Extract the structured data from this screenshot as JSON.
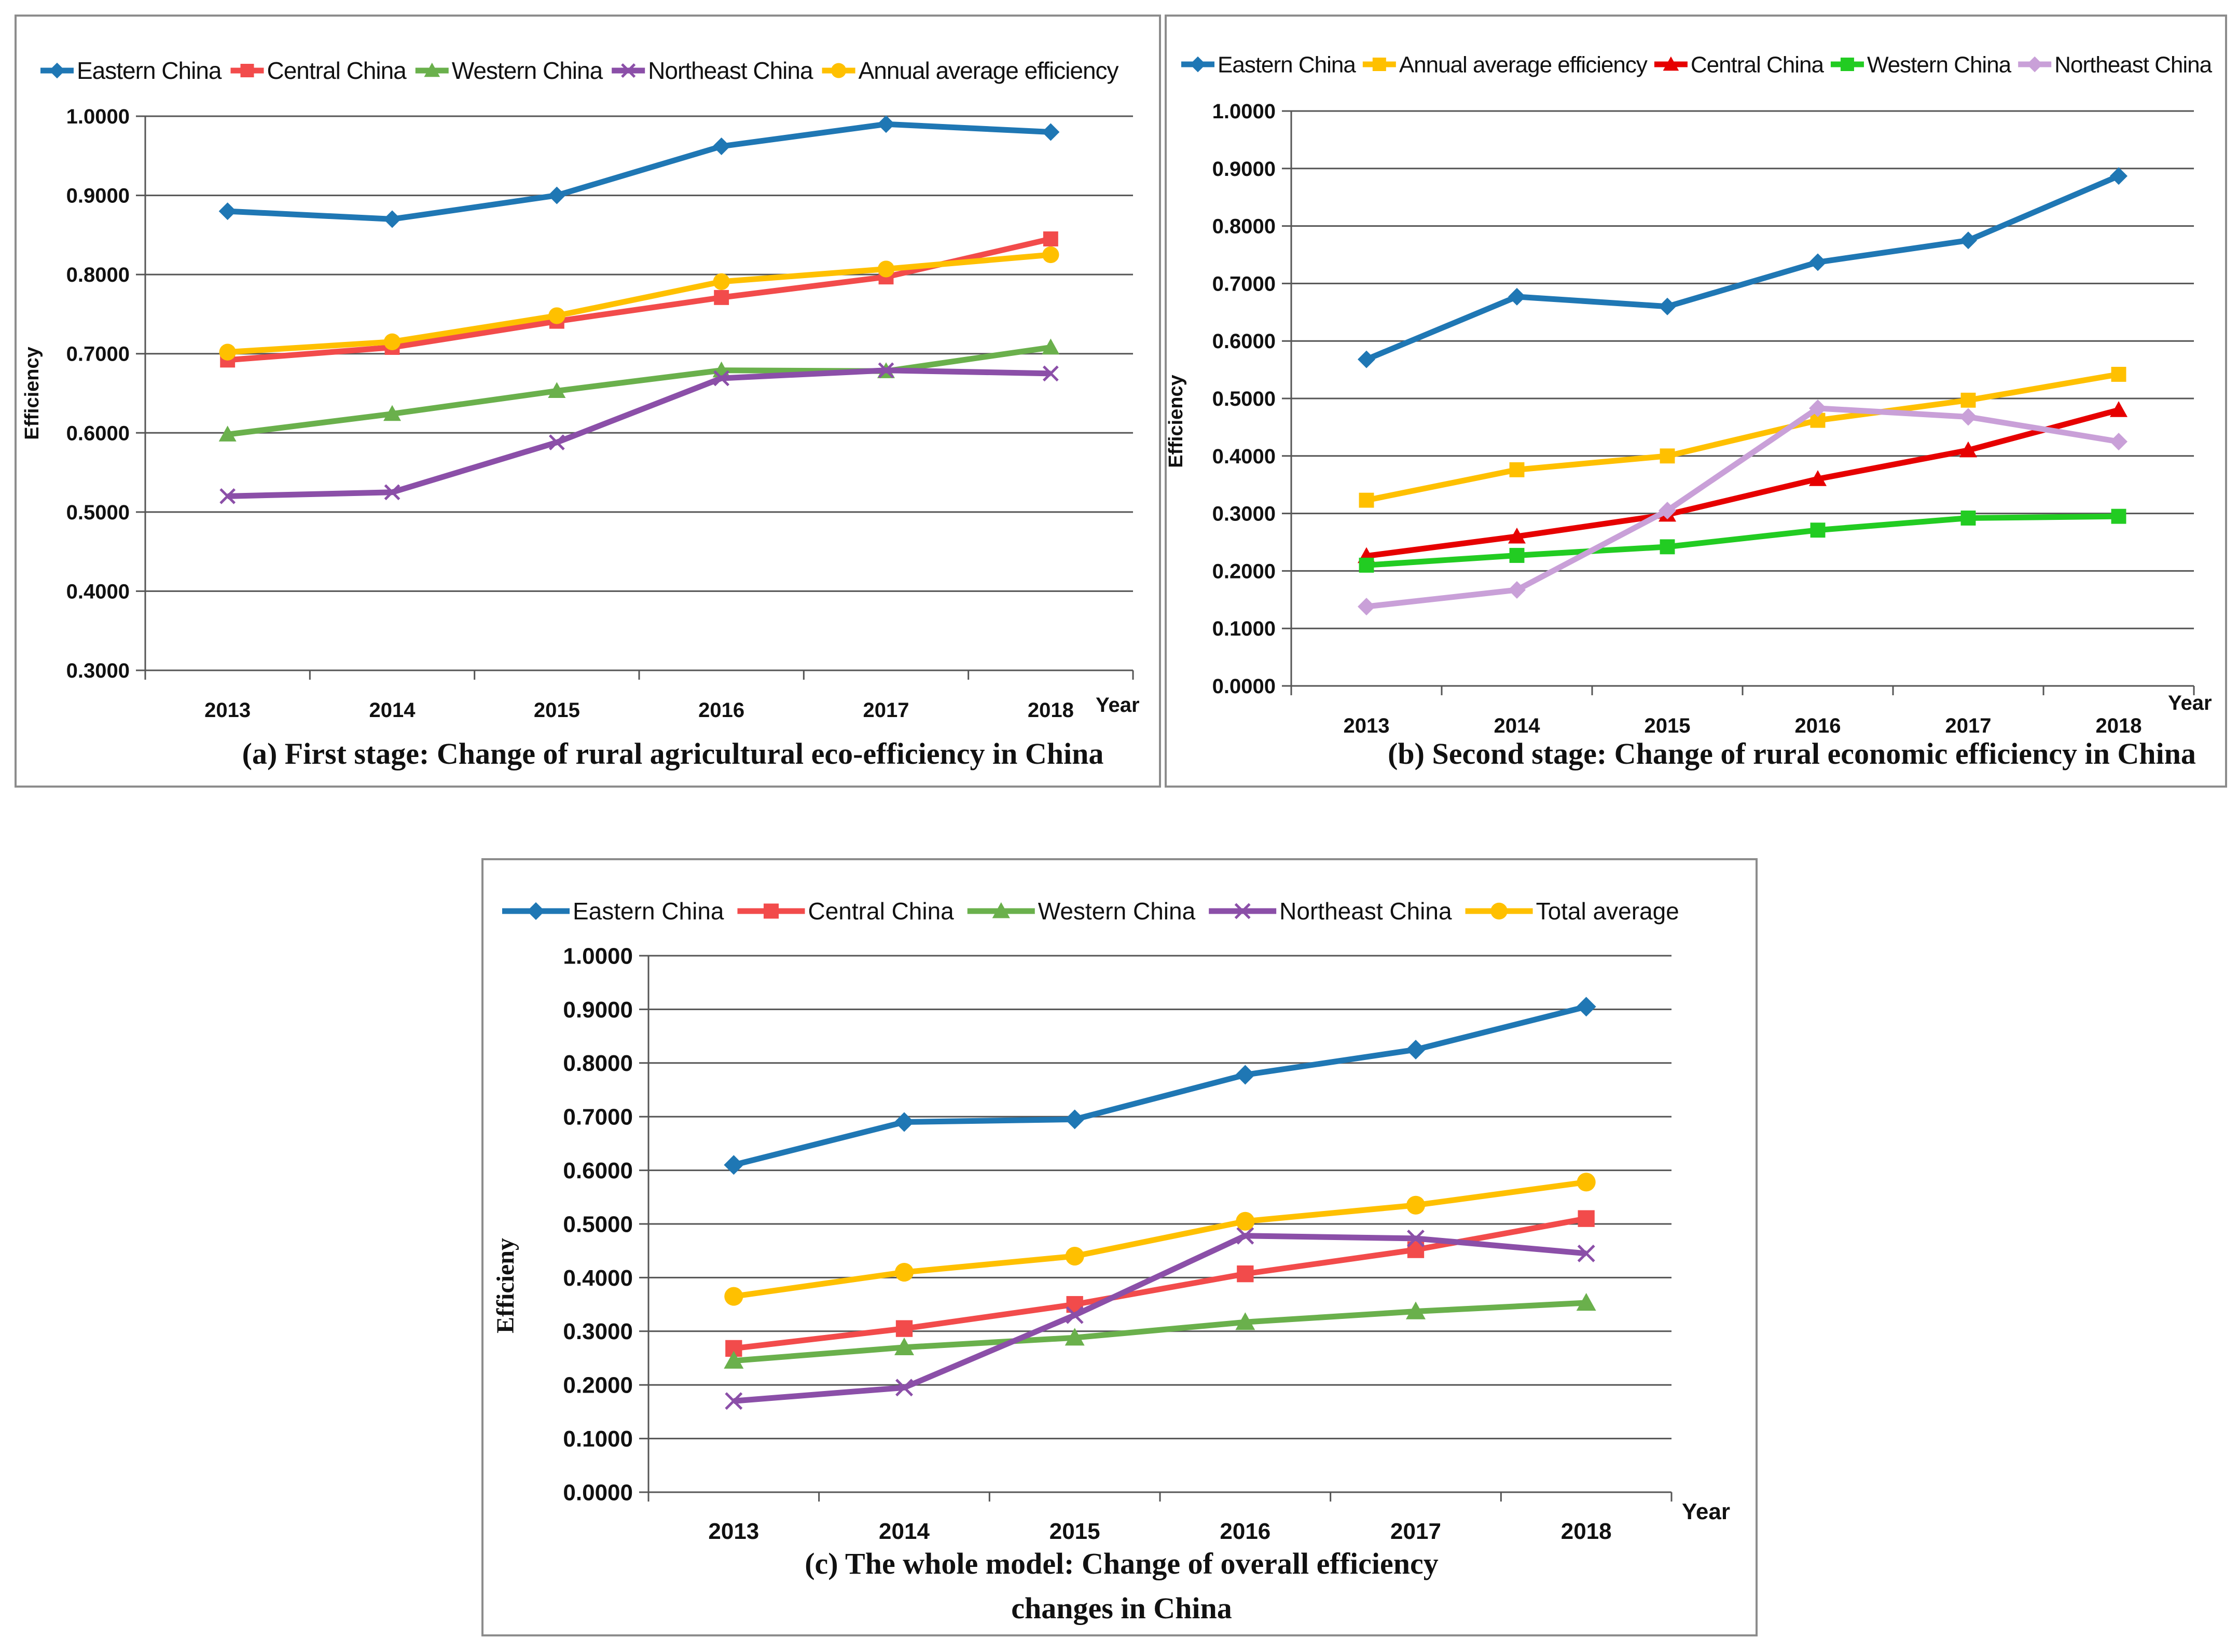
{
  "chart_data": [
    {
      "id": "a",
      "type": "line",
      "title": "(a) First stage: Change of rural agricultural eco-efficiency in China",
      "xlabel": "Year",
      "ylabel": "Efficiency",
      "categories": [
        "2013",
        "2014",
        "2015",
        "2016",
        "2017",
        "2018"
      ],
      "ylim": [
        0.3,
        1.0
      ],
      "yticks": [
        "0.3000",
        "0.4000",
        "0.5000",
        "0.6000",
        "0.7000",
        "0.8000",
        "0.9000",
        "1.0000"
      ],
      "series": [
        {
          "name": "Eastern China",
          "color": "#1f77b4",
          "marker": "diamond",
          "values": [
            0.88,
            0.87,
            0.9,
            0.962,
            0.99,
            0.98
          ]
        },
        {
          "name": "Central China",
          "color": "#f24b4b",
          "marker": "square",
          "values": [
            0.692,
            0.708,
            0.741,
            0.771,
            0.797,
            0.845
          ]
        },
        {
          "name": "Western China",
          "color": "#6ab04c",
          "marker": "triangle",
          "values": [
            0.598,
            0.624,
            0.653,
            0.679,
            0.678,
            0.708
          ]
        },
        {
          "name": "Northeast China",
          "color": "#8b4fa8",
          "marker": "x",
          "values": [
            0.52,
            0.525,
            0.588,
            0.669,
            0.679,
            0.675
          ]
        },
        {
          "name": "Annual average efficiency",
          "color": "#ffc000",
          "marker": "circle",
          "values": [
            0.702,
            0.715,
            0.748,
            0.791,
            0.807,
            0.825
          ]
        }
      ]
    },
    {
      "id": "b",
      "type": "line",
      "title": "(b) Second stage: Change of rural economic efficiency in China",
      "xlabel": "Year",
      "ylabel": "Efficiency",
      "categories": [
        "2013",
        "2014",
        "2015",
        "2016",
        "2017",
        "2018"
      ],
      "ylim": [
        0.0,
        1.0
      ],
      "yticks": [
        "0.0000",
        "0.1000",
        "0.2000",
        "0.3000",
        "0.4000",
        "0.5000",
        "0.6000",
        "0.7000",
        "0.8000",
        "0.9000",
        "1.0000"
      ],
      "series": [
        {
          "name": "Eastern China",
          "color": "#1f77b4",
          "marker": "diamond",
          "values": [
            0.568,
            0.677,
            0.66,
            0.737,
            0.775,
            0.887
          ]
        },
        {
          "name": "Annual average efficiency",
          "color": "#ffc000",
          "marker": "square",
          "values": [
            0.323,
            0.376,
            0.4,
            0.462,
            0.497,
            0.542
          ]
        },
        {
          "name": "Central China",
          "color": "#e60000",
          "marker": "triangle",
          "values": [
            0.226,
            0.26,
            0.298,
            0.36,
            0.41,
            0.48
          ]
        },
        {
          "name": "Western China",
          "color": "#22cc22",
          "marker": "square",
          "values": [
            0.21,
            0.227,
            0.242,
            0.271,
            0.292,
            0.295
          ]
        },
        {
          "name": "Northeast China",
          "color": "#c9a0d8",
          "marker": "diamond",
          "values": [
            0.138,
            0.167,
            0.305,
            0.483,
            0.468,
            0.425
          ]
        }
      ]
    },
    {
      "id": "c",
      "type": "line",
      "title": "(c) The whole model: Change of overall efficiency changes in China",
      "title_lines": [
        "(c) The whole model: Change of overall efficiency",
        "changes in China"
      ],
      "xlabel": "Year",
      "ylabel": "Efficieny",
      "categories": [
        "2013",
        "2014",
        "2015",
        "2016",
        "2017",
        "2018"
      ],
      "ylim": [
        0.0,
        1.0
      ],
      "yticks": [
        "0.0000",
        "0.1000",
        "0.2000",
        "0.3000",
        "0.4000",
        "0.5000",
        "0.6000",
        "0.7000",
        "0.8000",
        "0.9000",
        "1.0000"
      ],
      "series": [
        {
          "name": "Eastern China",
          "color": "#1f77b4",
          "marker": "diamond",
          "values": [
            0.61,
            0.69,
            0.695,
            0.778,
            0.825,
            0.905
          ]
        },
        {
          "name": "Central China",
          "color": "#f24b4b",
          "marker": "square",
          "values": [
            0.268,
            0.305,
            0.35,
            0.407,
            0.452,
            0.51
          ]
        },
        {
          "name": "Western China",
          "color": "#6ab04c",
          "marker": "triangle",
          "values": [
            0.245,
            0.27,
            0.288,
            0.317,
            0.337,
            0.353
          ]
        },
        {
          "name": "Northeast China",
          "color": "#8b4fa8",
          "marker": "x",
          "values": [
            0.17,
            0.195,
            0.33,
            0.478,
            0.473,
            0.445
          ]
        },
        {
          "name": "Total average",
          "color": "#ffc000",
          "marker": "circle",
          "values": [
            0.365,
            0.41,
            0.44,
            0.505,
            0.535,
            0.578
          ]
        }
      ]
    }
  ]
}
